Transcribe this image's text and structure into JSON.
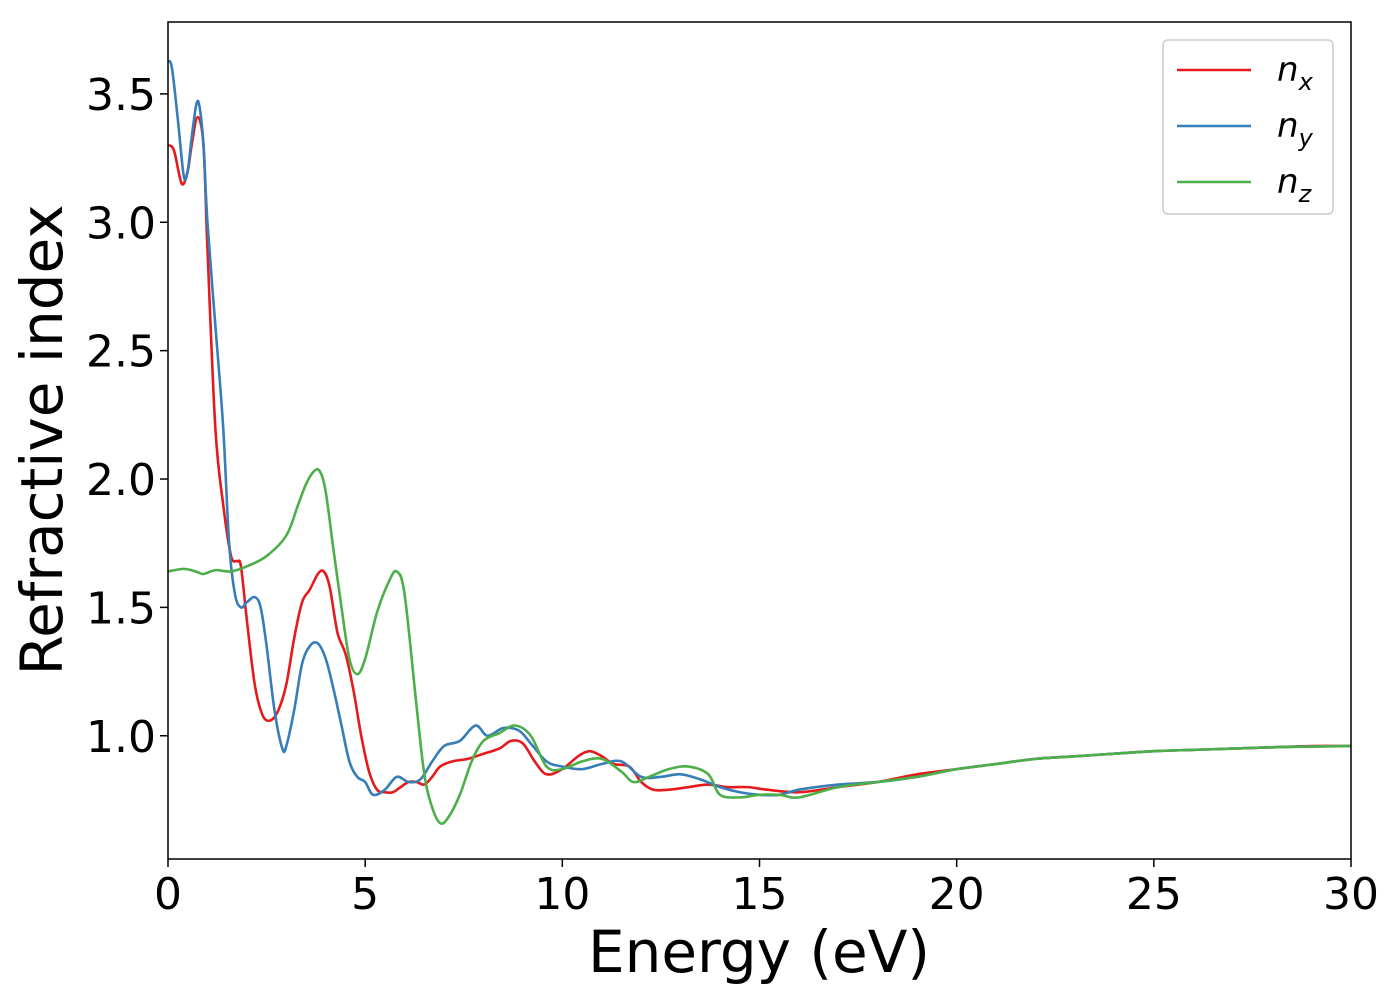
{
  "chart_data": {
    "type": "line",
    "xlabel": "Energy (eV)",
    "ylabel": "Refractive index",
    "xlim": [
      0,
      30
    ],
    "ylim": [
      0.52,
      3.78
    ],
    "xticks": [
      0,
      5,
      10,
      15,
      20,
      25,
      30
    ],
    "yticks": [
      1.0,
      1.5,
      2.0,
      2.5,
      3.0,
      3.5
    ],
    "xtick_labels": [
      "0",
      "5",
      "10",
      "15",
      "20",
      "25",
      "30"
    ],
    "ytick_labels": [
      "1.0",
      "1.5",
      "2.0",
      "2.5",
      "3.0",
      "3.5"
    ],
    "grid": false,
    "legend_position": "top-right",
    "series": [
      {
        "name": "n",
        "subscript": "x",
        "color": "#e41a1c",
        "points": [
          [
            0,
            3.3
          ],
          [
            0.15,
            3.28
          ],
          [
            0.35,
            3.15
          ],
          [
            0.5,
            3.2
          ],
          [
            0.6,
            3.3
          ],
          [
            0.75,
            3.41
          ],
          [
            0.9,
            3.3
          ],
          [
            1.0,
            2.9
          ],
          [
            1.2,
            2.2
          ],
          [
            1.4,
            1.9
          ],
          [
            1.6,
            1.7
          ],
          [
            1.75,
            1.68
          ],
          [
            1.85,
            1.66
          ],
          [
            2.0,
            1.45
          ],
          [
            2.2,
            1.2
          ],
          [
            2.4,
            1.08
          ],
          [
            2.6,
            1.06
          ],
          [
            2.8,
            1.1
          ],
          [
            3.0,
            1.2
          ],
          [
            3.2,
            1.38
          ],
          [
            3.4,
            1.52
          ],
          [
            3.6,
            1.57
          ],
          [
            3.8,
            1.63
          ],
          [
            3.95,
            1.64
          ],
          [
            4.1,
            1.58
          ],
          [
            4.3,
            1.4
          ],
          [
            4.5,
            1.32
          ],
          [
            4.7,
            1.18
          ],
          [
            4.9,
            1.0
          ],
          [
            5.1,
            0.86
          ],
          [
            5.3,
            0.79
          ],
          [
            5.5,
            0.78
          ],
          [
            5.7,
            0.78
          ],
          [
            5.9,
            0.8
          ],
          [
            6.1,
            0.82
          ],
          [
            6.3,
            0.82
          ],
          [
            6.5,
            0.81
          ],
          [
            6.7,
            0.84
          ],
          [
            6.9,
            0.88
          ],
          [
            7.2,
            0.9
          ],
          [
            7.6,
            0.91
          ],
          [
            8.0,
            0.93
          ],
          [
            8.4,
            0.95
          ],
          [
            8.7,
            0.98
          ],
          [
            9.0,
            0.97
          ],
          [
            9.3,
            0.9
          ],
          [
            9.6,
            0.85
          ],
          [
            10.0,
            0.87
          ],
          [
            10.4,
            0.92
          ],
          [
            10.7,
            0.94
          ],
          [
            11.0,
            0.92
          ],
          [
            11.3,
            0.89
          ],
          [
            11.7,
            0.88
          ],
          [
            12.0,
            0.82
          ],
          [
            12.3,
            0.79
          ],
          [
            12.7,
            0.79
          ],
          [
            13.2,
            0.8
          ],
          [
            13.7,
            0.81
          ],
          [
            14.2,
            0.8
          ],
          [
            14.7,
            0.8
          ],
          [
            15.2,
            0.79
          ],
          [
            16.0,
            0.78
          ],
          [
            17.0,
            0.8
          ],
          [
            18.0,
            0.82
          ],
          [
            19.0,
            0.85
          ],
          [
            20.0,
            0.87
          ],
          [
            21.0,
            0.89
          ],
          [
            22.0,
            0.91
          ],
          [
            23.0,
            0.92
          ],
          [
            24.0,
            0.93
          ],
          [
            25.0,
            0.94
          ],
          [
            26.0,
            0.945
          ],
          [
            27.0,
            0.95
          ],
          [
            28.0,
            0.955
          ],
          [
            29.0,
            0.96
          ],
          [
            30.0,
            0.96
          ]
        ]
      },
      {
        "name": "n",
        "subscript": "y",
        "color": "#377eb8",
        "points": [
          [
            0,
            3.63
          ],
          [
            0.1,
            3.6
          ],
          [
            0.25,
            3.4
          ],
          [
            0.4,
            3.18
          ],
          [
            0.5,
            3.2
          ],
          [
            0.6,
            3.33
          ],
          [
            0.72,
            3.46
          ],
          [
            0.8,
            3.45
          ],
          [
            0.9,
            3.3
          ],
          [
            1.0,
            3.0
          ],
          [
            1.2,
            2.6
          ],
          [
            1.4,
            2.2
          ],
          [
            1.55,
            1.75
          ],
          [
            1.7,
            1.55
          ],
          [
            1.85,
            1.5
          ],
          [
            2.0,
            1.52
          ],
          [
            2.2,
            1.54
          ],
          [
            2.35,
            1.5
          ],
          [
            2.5,
            1.35
          ],
          [
            2.7,
            1.1
          ],
          [
            2.9,
            0.95
          ],
          [
            3.0,
            0.96
          ],
          [
            3.2,
            1.1
          ],
          [
            3.4,
            1.28
          ],
          [
            3.6,
            1.35
          ],
          [
            3.8,
            1.36
          ],
          [
            4.0,
            1.3
          ],
          [
            4.2,
            1.18
          ],
          [
            4.4,
            1.04
          ],
          [
            4.6,
            0.9
          ],
          [
            4.8,
            0.84
          ],
          [
            5.0,
            0.82
          ],
          [
            5.2,
            0.77
          ],
          [
            5.5,
            0.79
          ],
          [
            5.8,
            0.84
          ],
          [
            6.1,
            0.82
          ],
          [
            6.4,
            0.83
          ],
          [
            6.7,
            0.9
          ],
          [
            7.0,
            0.96
          ],
          [
            7.4,
            0.98
          ],
          [
            7.8,
            1.04
          ],
          [
            8.1,
            1.0
          ],
          [
            8.5,
            1.03
          ],
          [
            8.9,
            1.02
          ],
          [
            9.2,
            0.97
          ],
          [
            9.6,
            0.9
          ],
          [
            10.0,
            0.88
          ],
          [
            10.5,
            0.87
          ],
          [
            11.0,
            0.89
          ],
          [
            11.5,
            0.9
          ],
          [
            12.0,
            0.84
          ],
          [
            12.5,
            0.84
          ],
          [
            13.0,
            0.85
          ],
          [
            13.5,
            0.83
          ],
          [
            14.0,
            0.8
          ],
          [
            14.5,
            0.78
          ],
          [
            15.0,
            0.77
          ],
          [
            15.5,
            0.77
          ],
          [
            16.0,
            0.79
          ],
          [
            17.0,
            0.81
          ],
          [
            18.0,
            0.82
          ],
          [
            19.0,
            0.84
          ],
          [
            20.0,
            0.87
          ],
          [
            21.0,
            0.89
          ],
          [
            22.0,
            0.91
          ],
          [
            23.0,
            0.92
          ],
          [
            24.0,
            0.93
          ],
          [
            25.0,
            0.94
          ],
          [
            26.0,
            0.945
          ],
          [
            27.0,
            0.95
          ],
          [
            28.0,
            0.955
          ],
          [
            29.0,
            0.958
          ],
          [
            30.0,
            0.96
          ]
        ]
      },
      {
        "name": "n",
        "subscript": "z",
        "color": "#4daf4a",
        "points": [
          [
            0,
            1.64
          ],
          [
            0.4,
            1.65
          ],
          [
            0.7,
            1.64
          ],
          [
            0.9,
            1.63
          ],
          [
            1.2,
            1.645
          ],
          [
            1.6,
            1.64
          ],
          [
            2.0,
            1.66
          ],
          [
            2.5,
            1.7
          ],
          [
            3.0,
            1.78
          ],
          [
            3.3,
            1.9
          ],
          [
            3.5,
            1.98
          ],
          [
            3.7,
            2.03
          ],
          [
            3.85,
            2.03
          ],
          [
            4.0,
            1.95
          ],
          [
            4.2,
            1.72
          ],
          [
            4.4,
            1.5
          ],
          [
            4.6,
            1.3
          ],
          [
            4.8,
            1.24
          ],
          [
            5.0,
            1.3
          ],
          [
            5.3,
            1.48
          ],
          [
            5.6,
            1.6
          ],
          [
            5.8,
            1.64
          ],
          [
            6.0,
            1.55
          ],
          [
            6.3,
            1.12
          ],
          [
            6.5,
            0.85
          ],
          [
            6.7,
            0.72
          ],
          [
            6.9,
            0.66
          ],
          [
            7.1,
            0.68
          ],
          [
            7.4,
            0.77
          ],
          [
            7.7,
            0.9
          ],
          [
            8.0,
            0.98
          ],
          [
            8.4,
            1.01
          ],
          [
            8.8,
            1.04
          ],
          [
            9.2,
            1.0
          ],
          [
            9.6,
            0.88
          ],
          [
            10.0,
            0.87
          ],
          [
            10.5,
            0.9
          ],
          [
            11.0,
            0.91
          ],
          [
            11.5,
            0.86
          ],
          [
            11.8,
            0.82
          ],
          [
            12.2,
            0.84
          ],
          [
            12.7,
            0.87
          ],
          [
            13.2,
            0.88
          ],
          [
            13.7,
            0.85
          ],
          [
            14.0,
            0.77
          ],
          [
            14.5,
            0.76
          ],
          [
            15.0,
            0.77
          ],
          [
            15.5,
            0.77
          ],
          [
            16.0,
            0.76
          ],
          [
            17.0,
            0.8
          ],
          [
            18.0,
            0.82
          ],
          [
            19.0,
            0.84
          ],
          [
            20.0,
            0.87
          ],
          [
            21.0,
            0.89
          ],
          [
            22.0,
            0.91
          ],
          [
            23.0,
            0.92
          ],
          [
            24.0,
            0.93
          ],
          [
            25.0,
            0.94
          ],
          [
            26.0,
            0.945
          ],
          [
            27.0,
            0.95
          ],
          [
            28.0,
            0.955
          ],
          [
            29.0,
            0.958
          ],
          [
            30.0,
            0.96
          ]
        ]
      }
    ]
  }
}
